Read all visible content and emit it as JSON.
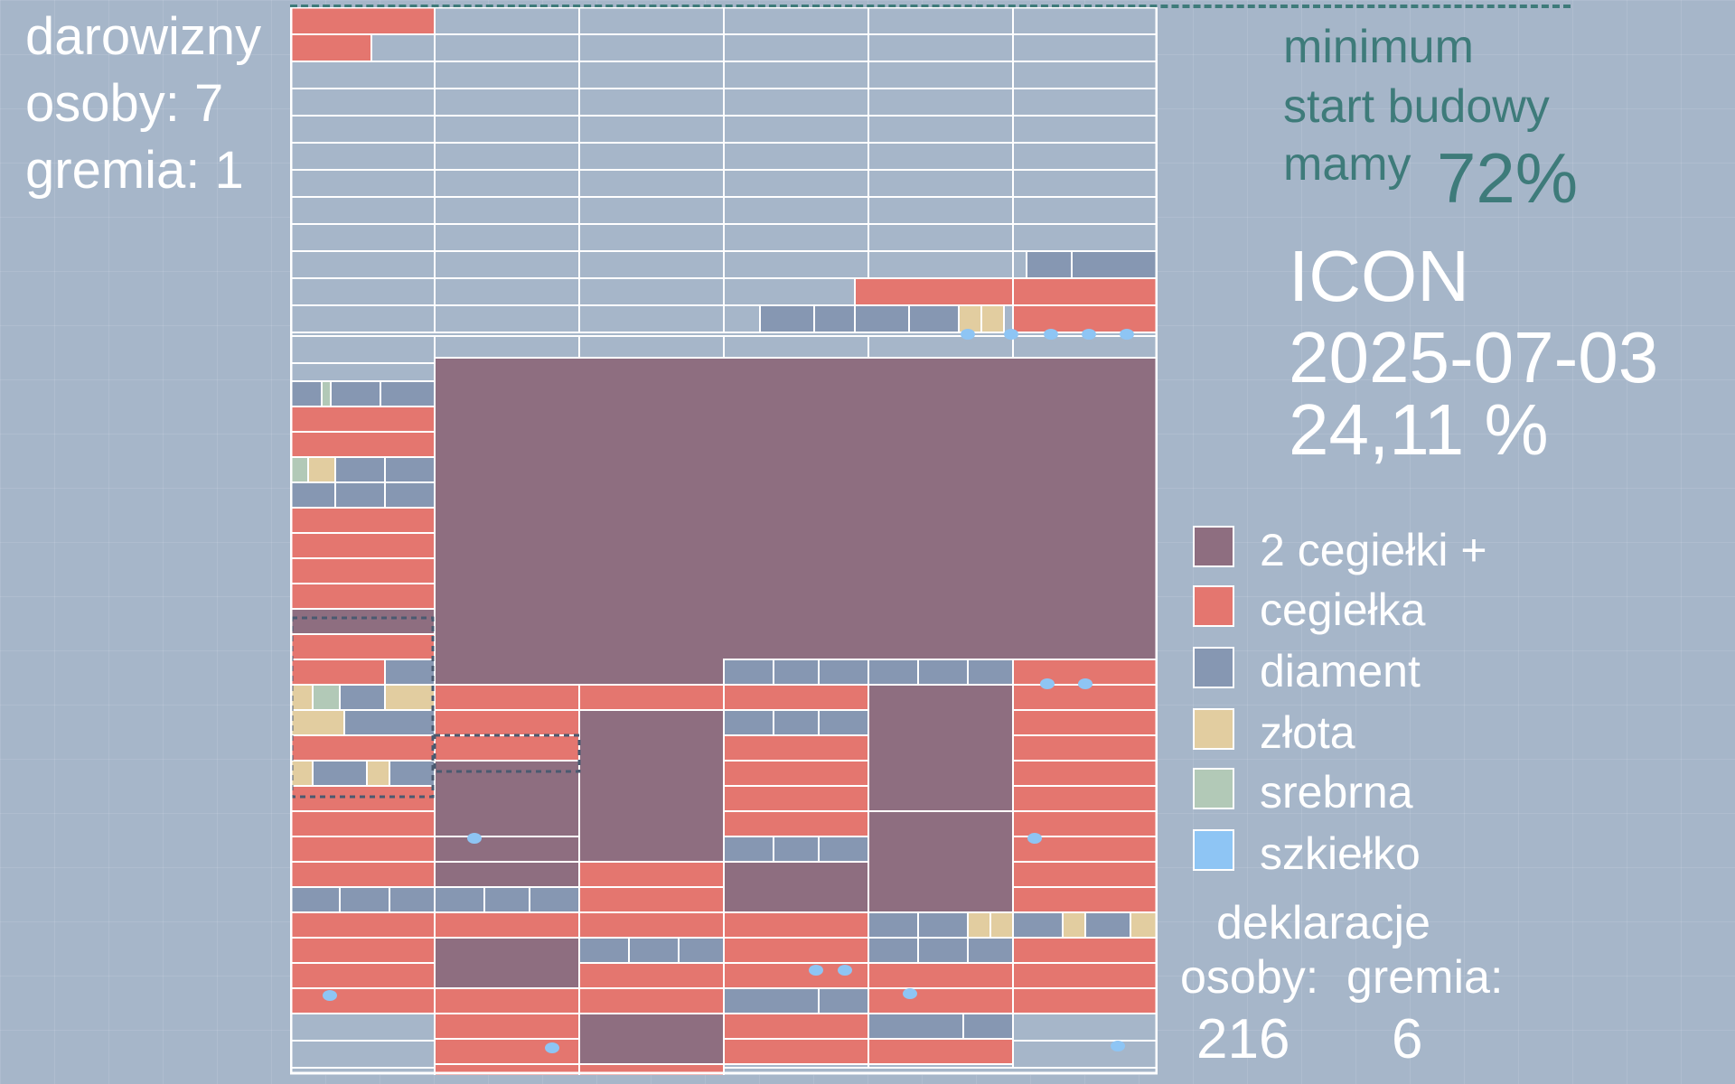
{
  "left_info": {
    "title": "darowizny",
    "osoby": "osoby: 7",
    "gremia": "gremia: 1"
  },
  "goal": {
    "line1": "minimum",
    "line2": "start budowy",
    "line3": "mamy",
    "percent": "72%"
  },
  "project": {
    "name": "ICON",
    "date": "2025-07-03",
    "percent": "24,11 %"
  },
  "legend": [
    {
      "label": "2 cegiełki +",
      "color": "#8e6e80",
      "icon": "brick-double-swatch"
    },
    {
      "label": "cegiełka",
      "color": "#e4766f",
      "icon": "brick-swatch"
    },
    {
      "label": "diament",
      "color": "#8697b2",
      "icon": "diamond-swatch"
    },
    {
      "label": "złota",
      "color": "#e2cda0",
      "icon": "gold-swatch"
    },
    {
      "label": "srebrna",
      "color": "#b2c9b7",
      "icon": "silver-swatch"
    },
    {
      "label": "szkiełko",
      "color": "#8ec5f4",
      "icon": "glass-swatch"
    }
  ],
  "declarations": {
    "title": "deklaracje",
    "osoby_label": "osoby:",
    "gremia_label": "gremia:",
    "osoby_value": "216",
    "gremia_value": "6"
  },
  "colors": {
    "background": "#a6b6c9",
    "accent": "#3e7b7a",
    "grid_line": "#ffffff"
  }
}
